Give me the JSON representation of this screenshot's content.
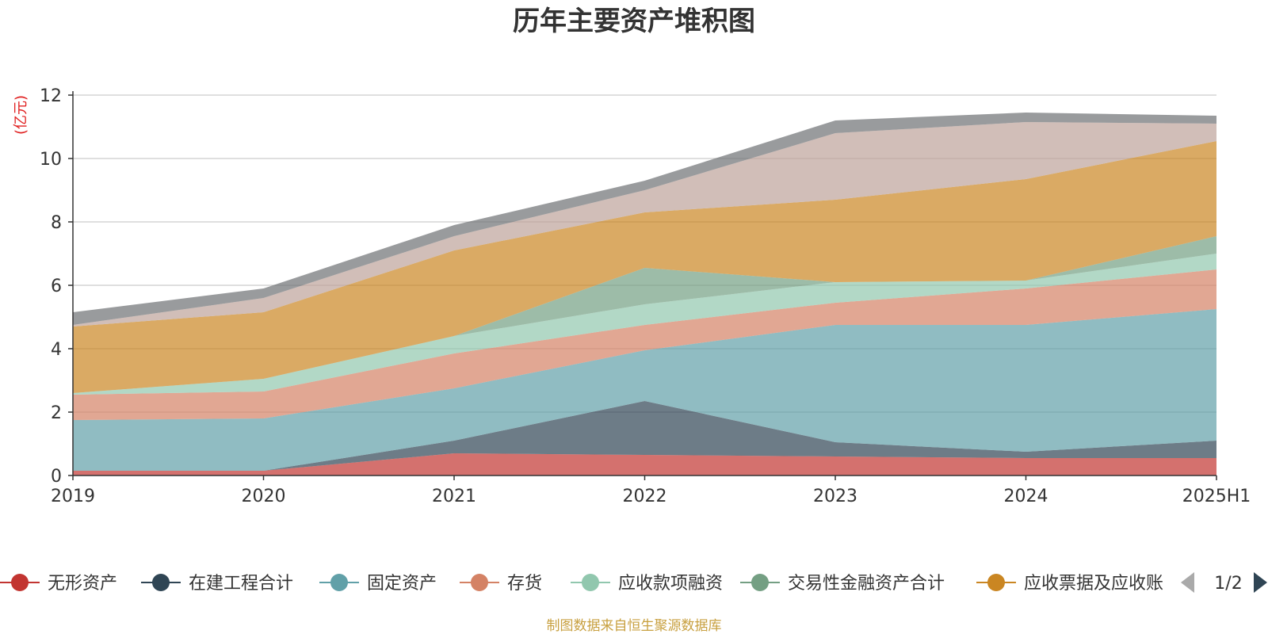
{
  "chart_data": {
    "type": "area",
    "stacked": true,
    "title": "历年主要资产堆积图",
    "unit_label": "(亿元)",
    "categories": [
      "2019",
      "2020",
      "2021",
      "2022",
      "2023",
      "2024",
      "2025H1"
    ],
    "ylim": [
      0,
      12
    ],
    "yticks": [
      0,
      2,
      4,
      6,
      8,
      10,
      12
    ],
    "grid": true,
    "legend_position": "bottom",
    "series": [
      {
        "name": "无形资产",
        "color": "#c23531",
        "values": [
          0.15,
          0.15,
          0.7,
          0.65,
          0.6,
          0.55,
          0.55
        ]
      },
      {
        "name": "在建工程合计",
        "color": "#2f4554",
        "values": [
          0.0,
          0.0,
          0.4,
          1.7,
          0.45,
          0.2,
          0.55
        ]
      },
      {
        "name": "固定资产",
        "color": "#61a0a8",
        "values": [
          1.6,
          1.65,
          1.65,
          1.6,
          3.7,
          4.0,
          4.15
        ]
      },
      {
        "name": "存货",
        "color": "#d48265",
        "values": [
          0.8,
          0.85,
          1.1,
          0.8,
          0.7,
          1.15,
          1.25
        ]
      },
      {
        "name": "应收款项融资",
        "color": "#91c7ae",
        "values": [
          0.05,
          0.4,
          0.55,
          0.65,
          0.65,
          0.25,
          0.5
        ]
      },
      {
        "name": "交易性金融资产合计",
        "color": "#749f83",
        "values": [
          0.0,
          0.0,
          0.0,
          1.15,
          0.0,
          0.0,
          0.55
        ]
      },
      {
        "name": "应收票据及应收账",
        "color": "#ca8622",
        "values": [
          2.1,
          2.1,
          2.7,
          1.75,
          2.6,
          3.2,
          3.0
        ]
      },
      {
        "name": "",
        "color": "#bda29a",
        "values": [
          0.05,
          0.45,
          0.45,
          0.7,
          2.1,
          1.8,
          0.55
        ]
      },
      {
        "name": "",
        "color": "#6e7074",
        "values": [
          0.4,
          0.3,
          0.35,
          0.3,
          0.4,
          0.3,
          0.25
        ]
      }
    ],
    "legend": {
      "visible_count": 7,
      "page_label": "1/2"
    },
    "source_note": "制图数据来自恒生聚源数据库"
  }
}
